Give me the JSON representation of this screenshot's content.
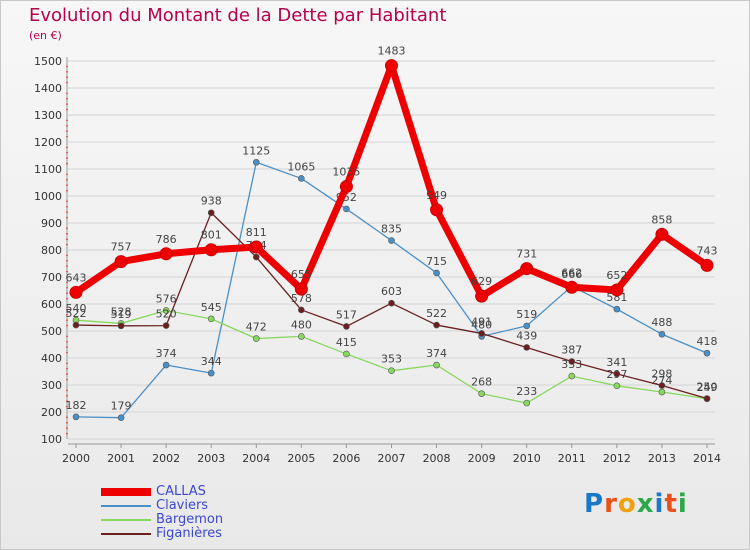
{
  "title": "Evolution du Montant de la Dette par Habitant",
  "subtitle": "(en €)",
  "logo": {
    "letters": [
      "P",
      "r",
      "o",
      "x",
      "i",
      "t",
      "i"
    ],
    "colors": [
      "#1a78c8",
      "#e8501c",
      "#f0a010",
      "#2aa84a",
      "#1a78c8",
      "#e8501c",
      "#2aa84a"
    ]
  },
  "chart_data": {
    "type": "line",
    "x": [
      "2000",
      "2001",
      "2002",
      "2003",
      "2004",
      "2005",
      "2006",
      "2007",
      "2008",
      "2009",
      "2010",
      "2011",
      "2012",
      "2013",
      "2014"
    ],
    "ylim": [
      100,
      1500
    ],
    "yticks": [
      100,
      200,
      300,
      400,
      500,
      600,
      700,
      800,
      900,
      1000,
      1100,
      1200,
      1300,
      1400,
      1500
    ],
    "grid": true,
    "legend_position": "bottom-left",
    "series": [
      {
        "name": "CALLAS",
        "color": "#ee0000",
        "values": [
          643,
          757,
          786,
          801,
          811,
          655,
          1035,
          1483,
          949,
          629,
          731,
          662,
          652,
          858,
          743
        ]
      },
      {
        "name": "Claviers",
        "color": "#4a90c8",
        "values": [
          182,
          179,
          374,
          344,
          1125,
          1065,
          952,
          835,
          715,
          480,
          519,
          666,
          581,
          488,
          418
        ]
      },
      {
        "name": "Bargemon",
        "color": "#88d860",
        "values": [
          540,
          528,
          576,
          545,
          472,
          480,
          415,
          353,
          374,
          268,
          233,
          333,
          297,
          274,
          249
        ]
      },
      {
        "name": "Figanières",
        "color": "#6b2020",
        "values": [
          522,
          519,
          520,
          938,
          774,
          578,
          517,
          603,
          522,
          491,
          439,
          387,
          341,
          298,
          250
        ]
      }
    ]
  }
}
